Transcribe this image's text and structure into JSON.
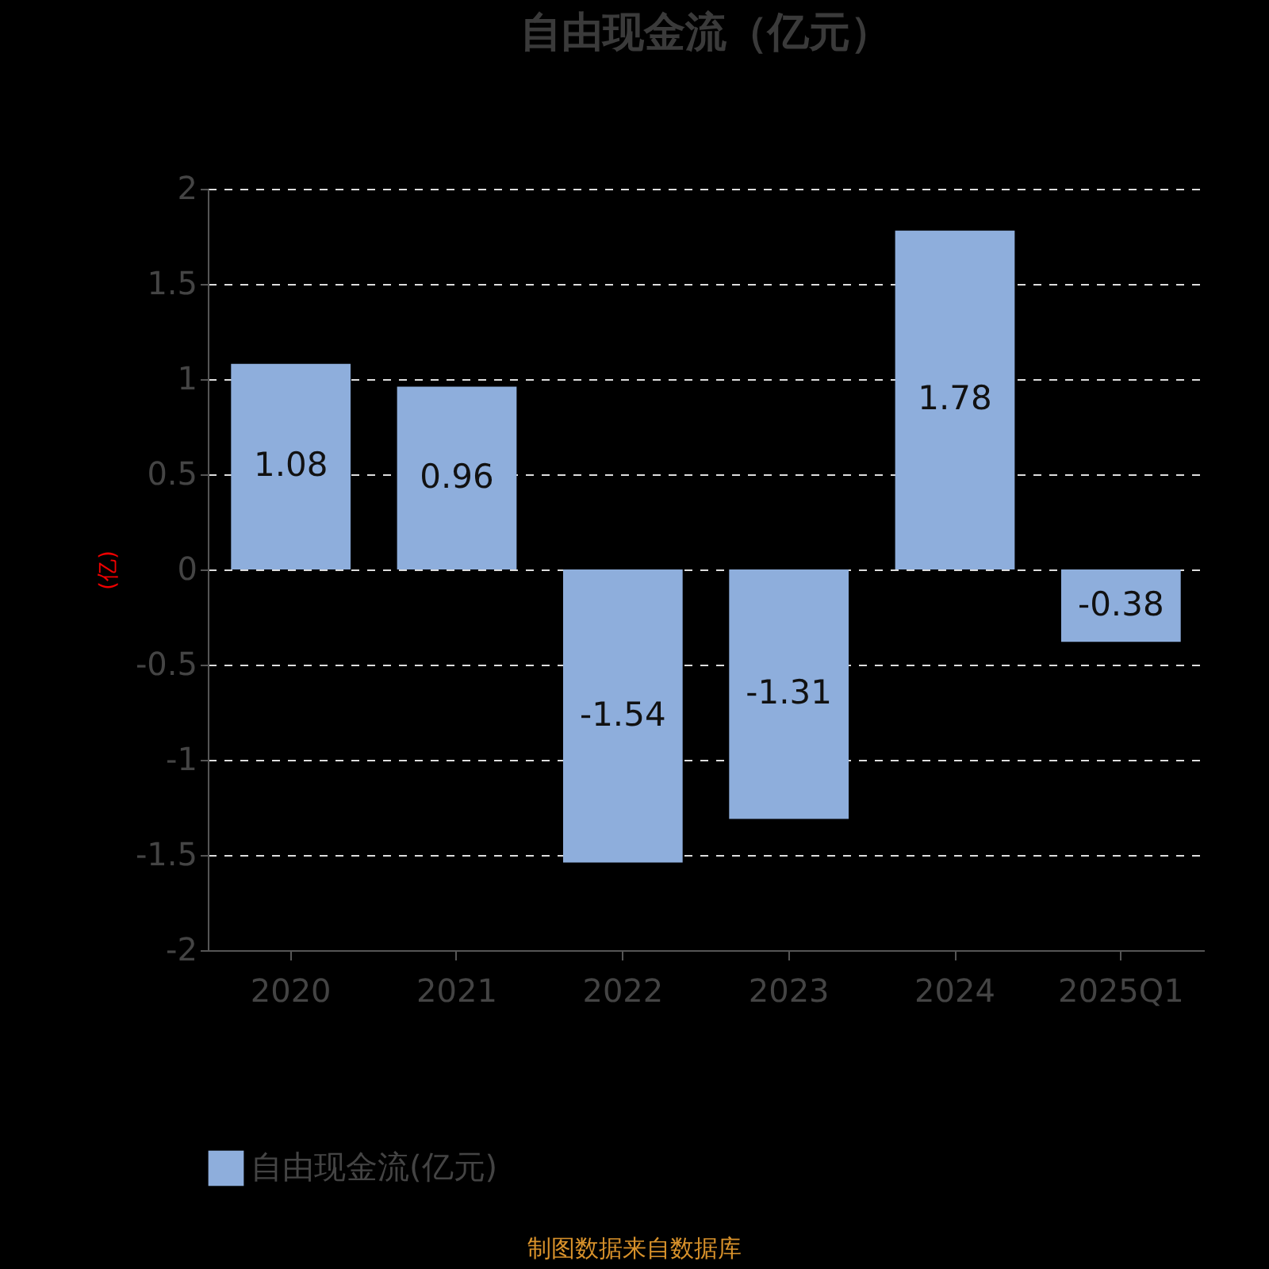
{
  "chart_data": {
    "type": "bar",
    "title": "自由现金流（亿元）",
    "ylabel": "(亿)",
    "categories": [
      "2020",
      "2021",
      "2022",
      "2023",
      "2024",
      "2025Q1"
    ],
    "series": [
      {
        "name": "自由现金流(亿元)",
        "color": "#8eaedc",
        "values": [
          1.08,
          0.96,
          -1.54,
          -1.31,
          1.78,
          -0.38
        ]
      }
    ],
    "ylim": [
      -2,
      2
    ],
    "yticks": [
      -2,
      -1.5,
      -1,
      -0.5,
      0,
      0.5,
      1,
      1.5,
      2
    ],
    "grid": "y",
    "legend": "bottom",
    "data_labels": true,
    "annotations": [
      "制图数据来自数据库"
    ]
  }
}
